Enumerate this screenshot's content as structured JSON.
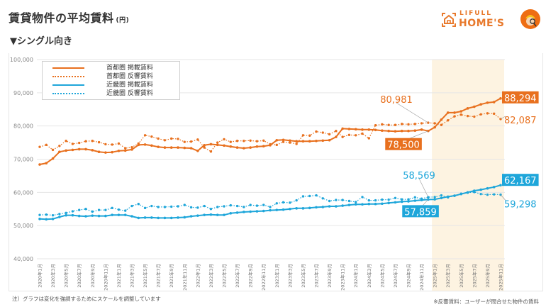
{
  "header": {
    "title": "賃貸物件の平均賃料",
    "unit": "(円)",
    "subtitle": "▼シングル向き",
    "logo_top": "LIFULL",
    "logo_main": "HOME'S"
  },
  "notes": {
    "left": "注）グラフは変化を強調するためにスケールを調整しています",
    "right": "※反響賃料：ユーザーが問合せた物件の賃料"
  },
  "colors": {
    "orange": "#e8701e",
    "blue": "#1ea6da",
    "highlight": "#fdf3e1",
    "grid": "#e6e6e6"
  },
  "chart_data": {
    "type": "line",
    "title": "賃貸物件の平均賃料 (円) シングル向き",
    "xlabel": "",
    "ylabel": "",
    "ylim": [
      40000,
      100000
    ],
    "yticks": [
      40000,
      50000,
      60000,
      70000,
      80000,
      90000,
      100000
    ],
    "ytick_labels": [
      "40,000",
      "50,000",
      "60,000",
      "70,000",
      "80,000",
      "90,000",
      "100,000"
    ],
    "grid": true,
    "legend_position": "top-left",
    "x_labels": [
      "2020年1月",
      "2020年3月",
      "2020年5月",
      "2020年7月",
      "2020年9月",
      "2020年11月",
      "2021年1月",
      "2021年3月",
      "2021年5月",
      "2021年7月",
      "2021年9月",
      "2021年11月",
      "2022年1月",
      "2022年3月",
      "2022年5月",
      "2022年7月",
      "2022年9月",
      "2022年11月",
      "2023年1月",
      "2023年3月",
      "2023年5月",
      "2023年7月",
      "2023年9月",
      "2023年11月",
      "2024年1月",
      "2024年3月",
      "2024年5月",
      "2024年7月",
      "2024年9月",
      "2024年11月",
      "2025年1月",
      "2025年3月",
      "2025年5月",
      "2025年7月",
      "2025年9月",
      "2025年11月"
    ],
    "x_start": "2020年1月",
    "x_end": "2025年11月",
    "n_points": 71,
    "highlight_range": [
      "2025年1月",
      "2025年11月"
    ],
    "series": [
      {
        "name": "首都圏 掲載賃料",
        "color": "#e8701e",
        "style": "solid",
        "values": [
          68400,
          68800,
          70200,
          72200,
          72600,
          72800,
          73000,
          73000,
          72700,
          72200,
          72000,
          72100,
          72500,
          72600,
          72900,
          74300,
          74400,
          74100,
          73700,
          73500,
          73500,
          73500,
          73400,
          73300,
          72500,
          74200,
          74500,
          74300,
          74100,
          73800,
          73500,
          73300,
          73500,
          73800,
          73900,
          74200,
          75700,
          75800,
          75600,
          75400,
          75400,
          75400,
          75500,
          75600,
          75700,
          76700,
          79200,
          79100,
          79000,
          78900,
          78900,
          78800,
          78600,
          78500,
          78400,
          78500,
          78500,
          78600,
          78900,
          78500,
          79600,
          81900,
          84000,
          84000,
          84400,
          85300,
          85800,
          86500,
          87000,
          87200,
          88294
        ]
      },
      {
        "name": "首都圏 反響賃料",
        "color": "#e8701e",
        "style": "dotted",
        "values": [
          73700,
          74300,
          72800,
          74000,
          75500,
          74600,
          74900,
          75400,
          75500,
          75100,
          74500,
          74400,
          74700,
          73300,
          73600,
          74700,
          77200,
          76800,
          76200,
          75700,
          76200,
          76100,
          75200,
          75300,
          75900,
          73500,
          72300,
          75000,
          76000,
          75200,
          75500,
          75500,
          75600,
          75400,
          75600,
          74500,
          74300,
          75200,
          75000,
          74600,
          77200,
          77100,
          78300,
          78000,
          77500,
          78500,
          76700,
          77300,
          77200,
          77700,
          76300,
          80200,
          80500,
          80300,
          80300,
          80600,
          80500,
          80600,
          80800,
          80981,
          80800,
          80300,
          81700,
          82900,
          83400,
          83000,
          82800,
          83500,
          83800,
          83700,
          82087
        ]
      },
      {
        "name": "近畿圏 掲載賃料",
        "color": "#1ea6da",
        "style": "solid",
        "values": [
          52000,
          51900,
          52000,
          52600,
          53100,
          53100,
          52900,
          52800,
          53000,
          52900,
          52900,
          53200,
          53200,
          53200,
          52800,
          52300,
          52400,
          52400,
          52300,
          52300,
          52300,
          52400,
          52500,
          52800,
          53000,
          53200,
          53300,
          53200,
          53200,
          53700,
          53900,
          54100,
          54200,
          54300,
          54400,
          54600,
          54700,
          54800,
          55000,
          55200,
          55200,
          55300,
          55500,
          55600,
          55800,
          55800,
          56000,
          56200,
          56400,
          56400,
          56500,
          56500,
          56600,
          56800,
          57000,
          57200,
          57300,
          57500,
          57700,
          57859,
          57900,
          58300,
          58700,
          59000,
          59500,
          60000,
          60500,
          60800,
          61200,
          61600,
          62167
        ]
      },
      {
        "name": "近畿圏 反響賃料",
        "color": "#1ea6da",
        "style": "dotted",
        "values": [
          53200,
          53300,
          53100,
          53500,
          53800,
          54300,
          54700,
          55000,
          54200,
          54700,
          54700,
          55300,
          54800,
          54500,
          55900,
          56500,
          55300,
          55900,
          55600,
          55600,
          55700,
          55800,
          56200,
          55500,
          55400,
          55900,
          55000,
          55600,
          55800,
          56100,
          55900,
          55600,
          56200,
          56000,
          56200,
          55600,
          56700,
          57000,
          56900,
          57600,
          58800,
          58900,
          59100,
          58200,
          57400,
          57700,
          57700,
          57400,
          57100,
          58600,
          57600,
          57600,
          57800,
          57800,
          58300,
          57900,
          57900,
          58500,
          58100,
          58569,
          58600,
          59100,
          58500,
          59000,
          59600,
          59900,
          60100,
          59500,
          59300,
          59400,
          59298
        ]
      }
    ],
    "annotations": [
      {
        "series": "首都圏 掲載賃料",
        "x": "2024年12月",
        "label": "78,500",
        "boxed": true
      },
      {
        "series": "首都圏 反響賃料",
        "x": "2024年12月",
        "label": "80,981",
        "boxed": false
      },
      {
        "series": "近畿圏 掲載賃料",
        "x": "2024年12月",
        "label": "57,859",
        "boxed": true
      },
      {
        "series": "近畿圏 反響賃料",
        "x": "2024年12月",
        "label": "58,569",
        "boxed": false
      },
      {
        "series": "首都圏 掲載賃料",
        "x": "2025年11月",
        "label": "88,294",
        "boxed": true
      },
      {
        "series": "首都圏 反響賃料",
        "x": "2025年11月",
        "label": "82,087",
        "boxed": false
      },
      {
        "series": "近畿圏 掲載賃料",
        "x": "2025年11月",
        "label": "62,167",
        "boxed": true
      },
      {
        "series": "近畿圏 反響賃料",
        "x": "2025年11月",
        "label": "59,298",
        "boxed": false
      }
    ]
  }
}
